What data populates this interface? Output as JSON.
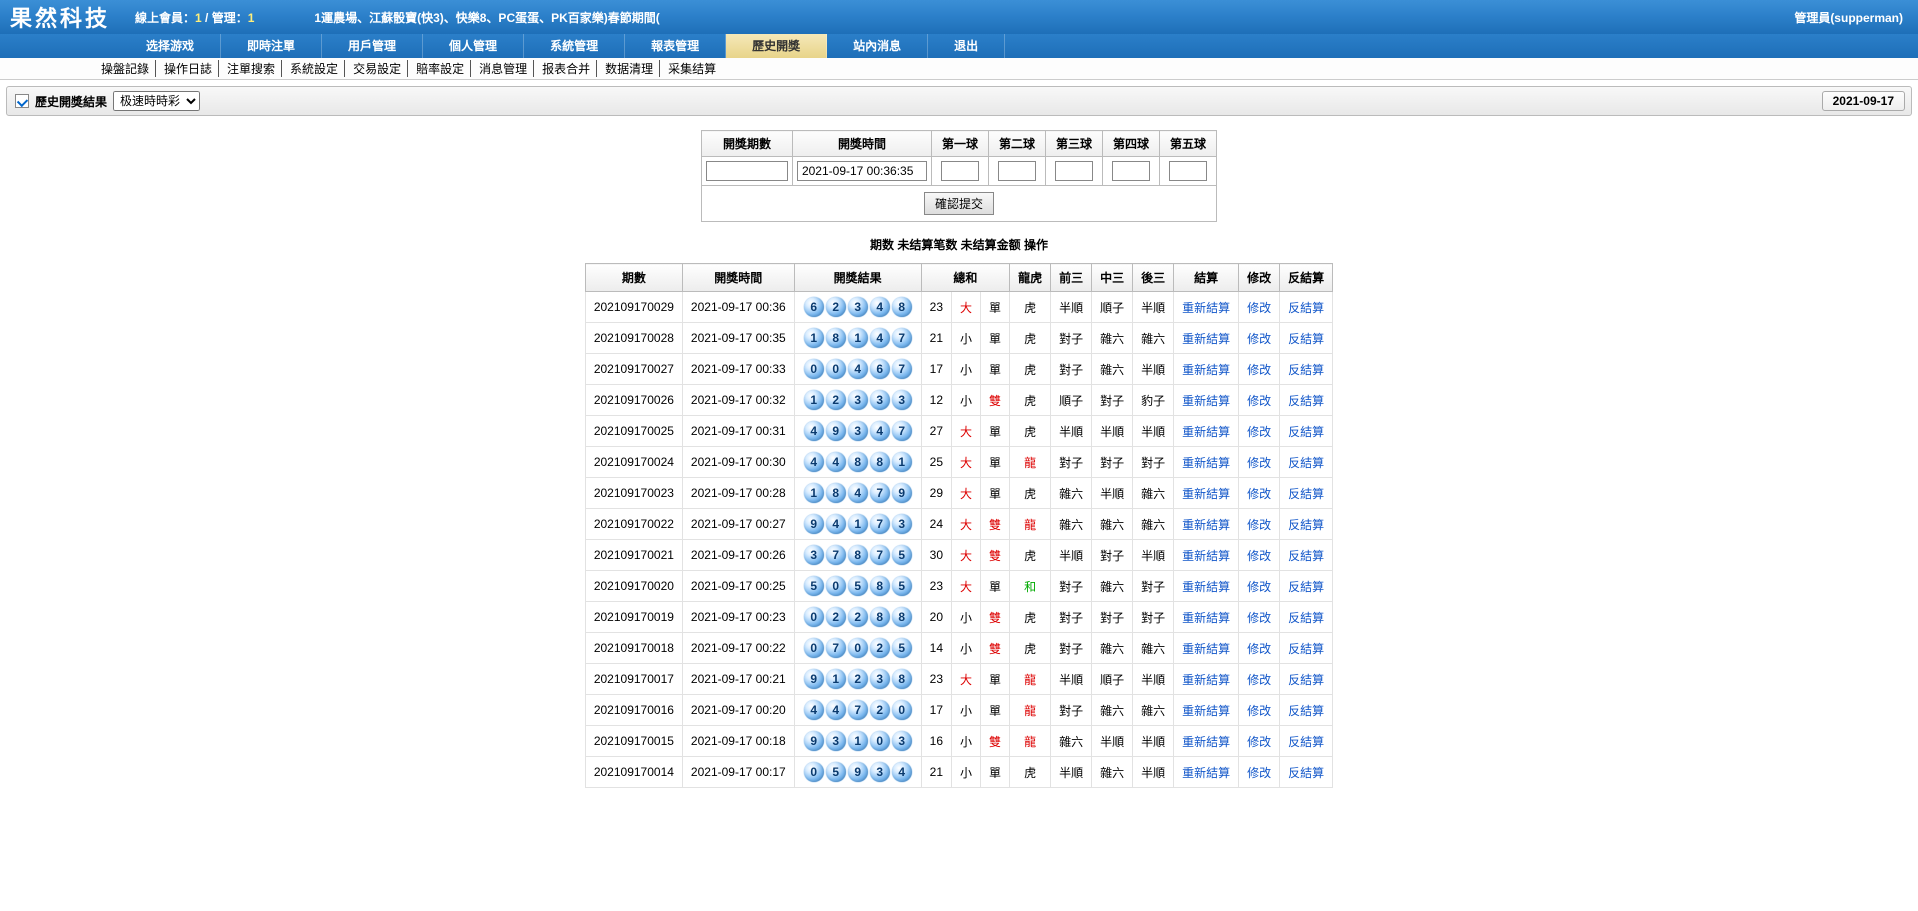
{
  "header": {
    "logo": "果然科技",
    "online_label": "線上會員：",
    "online_member": "1",
    "online_sep": " / 管理：",
    "online_admin": "1",
    "marquee": "1運農場、江蘇骰寶(快3)、快樂8、PC蛋蛋、PK百家樂)春節期間(",
    "user": "管理員(supperman)"
  },
  "nav": [
    "选择游戏",
    "即時注單",
    "用戶管理",
    "個人管理",
    "系統管理",
    "報表管理",
    "歷史開獎",
    "站內消息",
    "退出"
  ],
  "nav_active_index": 6,
  "sub_nav": [
    "操盤記錄",
    "操作日誌",
    "注單搜索",
    "系統設定",
    "交易設定",
    "賠率設定",
    "消息管理",
    "报表合并",
    "数据清理",
    "采集结算"
  ],
  "history": {
    "label": "歷史開獎結果",
    "select_value": "极速時時彩",
    "date": "2021-09-17"
  },
  "input_form": {
    "headers": [
      "開獎期數",
      "開獎時間",
      "第一球",
      "第二球",
      "第三球",
      "第四球",
      "第五球"
    ],
    "time_value": "2021-09-17 00:36:35",
    "submit": "確認提交"
  },
  "summary_header": "期数 未结算笔数 未结算金额 操作",
  "data_headers": [
    "期數",
    "開獎時間",
    "開獎結果",
    "總和",
    "",
    "龍虎",
    "前三",
    "中三",
    "後三",
    "結算",
    "修改",
    "反結算"
  ],
  "link_settle": "重新結算",
  "link_modify": "修改",
  "link_reverse": "反結算",
  "rows": [
    {
      "p": "202109170029",
      "t": "2021-09-17 00:36",
      "b": [
        6,
        2,
        3,
        4,
        8
      ],
      "s": 23,
      "bs": "大",
      "oe": "單",
      "dt": "虎",
      "f3": "半順",
      "m3": "順子",
      "l3": "半順"
    },
    {
      "p": "202109170028",
      "t": "2021-09-17 00:35",
      "b": [
        1,
        8,
        1,
        4,
        7
      ],
      "s": 21,
      "bs": "小",
      "oe": "單",
      "dt": "虎",
      "f3": "對子",
      "m3": "雜六",
      "l3": "雜六"
    },
    {
      "p": "202109170027",
      "t": "2021-09-17 00:33",
      "b": [
        0,
        0,
        4,
        6,
        7
      ],
      "s": 17,
      "bs": "小",
      "oe": "單",
      "dt": "虎",
      "f3": "對子",
      "m3": "雜六",
      "l3": "半順"
    },
    {
      "p": "202109170026",
      "t": "2021-09-17 00:32",
      "b": [
        1,
        2,
        3,
        3,
        3
      ],
      "s": 12,
      "bs": "小",
      "oe": "雙",
      "dt": "虎",
      "f3": "順子",
      "m3": "對子",
      "l3": "豹子"
    },
    {
      "p": "202109170025",
      "t": "2021-09-17 00:31",
      "b": [
        4,
        9,
        3,
        4,
        7
      ],
      "s": 27,
      "bs": "大",
      "oe": "單",
      "dt": "虎",
      "f3": "半順",
      "m3": "半順",
      "l3": "半順"
    },
    {
      "p": "202109170024",
      "t": "2021-09-17 00:30",
      "b": [
        4,
        4,
        8,
        8,
        1
      ],
      "s": 25,
      "bs": "大",
      "oe": "單",
      "dt": "龍",
      "f3": "對子",
      "m3": "對子",
      "l3": "對子"
    },
    {
      "p": "202109170023",
      "t": "2021-09-17 00:28",
      "b": [
        1,
        8,
        4,
        7,
        9
      ],
      "s": 29,
      "bs": "大",
      "oe": "單",
      "dt": "虎",
      "f3": "雜六",
      "m3": "半順",
      "l3": "雜六"
    },
    {
      "p": "202109170022",
      "t": "2021-09-17 00:27",
      "b": [
        9,
        4,
        1,
        7,
        3
      ],
      "s": 24,
      "bs": "大",
      "oe": "雙",
      "dt": "龍",
      "f3": "雜六",
      "m3": "雜六",
      "l3": "雜六"
    },
    {
      "p": "202109170021",
      "t": "2021-09-17 00:26",
      "b": [
        3,
        7,
        8,
        7,
        5
      ],
      "s": 30,
      "bs": "大",
      "oe": "雙",
      "dt": "虎",
      "f3": "半順",
      "m3": "對子",
      "l3": "半順"
    },
    {
      "p": "202109170020",
      "t": "2021-09-17 00:25",
      "b": [
        5,
        0,
        5,
        8,
        5
      ],
      "s": 23,
      "bs": "大",
      "oe": "單",
      "dt": "和",
      "f3": "對子",
      "m3": "雜六",
      "l3": "對子"
    },
    {
      "p": "202109170019",
      "t": "2021-09-17 00:23",
      "b": [
        0,
        2,
        2,
        8,
        8
      ],
      "s": 20,
      "bs": "小",
      "oe": "雙",
      "dt": "虎",
      "f3": "對子",
      "m3": "對子",
      "l3": "對子"
    },
    {
      "p": "202109170018",
      "t": "2021-09-17 00:22",
      "b": [
        0,
        7,
        0,
        2,
        5
      ],
      "s": 14,
      "bs": "小",
      "oe": "雙",
      "dt": "虎",
      "f3": "對子",
      "m3": "雜六",
      "l3": "雜六"
    },
    {
      "p": "202109170017",
      "t": "2021-09-17 00:21",
      "b": [
        9,
        1,
        2,
        3,
        8
      ],
      "s": 23,
      "bs": "大",
      "oe": "單",
      "dt": "龍",
      "f3": "半順",
      "m3": "順子",
      "l3": "半順"
    },
    {
      "p": "202109170016",
      "t": "2021-09-17 00:20",
      "b": [
        4,
        4,
        7,
        2,
        0
      ],
      "s": 17,
      "bs": "小",
      "oe": "單",
      "dt": "龍",
      "f3": "對子",
      "m3": "雜六",
      "l3": "雜六"
    },
    {
      "p": "202109170015",
      "t": "2021-09-17 00:18",
      "b": [
        9,
        3,
        1,
        0,
        3
      ],
      "s": 16,
      "bs": "小",
      "oe": "雙",
      "dt": "龍",
      "f3": "雜六",
      "m3": "半順",
      "l3": "半順"
    },
    {
      "p": "202109170014",
      "t": "2021-09-17 00:17",
      "b": [
        0,
        5,
        9,
        3,
        4
      ],
      "s": 21,
      "bs": "小",
      "oe": "單",
      "dt": "虎",
      "f3": "半順",
      "m3": "雜六",
      "l3": "半順"
    }
  ]
}
